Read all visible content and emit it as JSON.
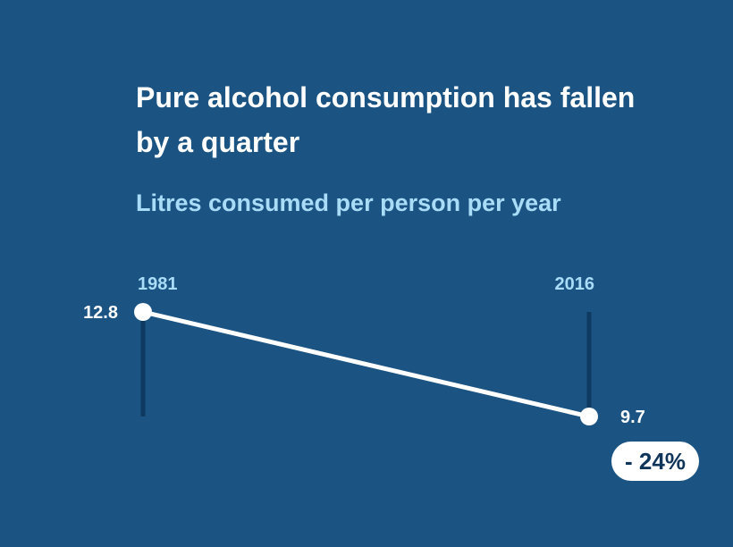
{
  "title": "Pure alcohol consumption has fallen by a quarter",
  "subtitle": "Litres consumed per person per year",
  "change_label": "- 24%",
  "colors": {
    "background": "#1b5483",
    "line": "#ffffff",
    "stem": "#0e3a62",
    "year_label": "#a9dcf7",
    "badge_text": "#10355a"
  },
  "chart_data": {
    "type": "line",
    "title": "Pure alcohol consumption has fallen by a quarter",
    "subtitle": "Litres consumed per person per year",
    "x": [
      "1981",
      "2016"
    ],
    "series": [
      {
        "values": [
          12.8,
          9.7
        ]
      }
    ],
    "data_labels": [
      "12.8",
      "9.7"
    ],
    "ylim": [
      9.7,
      12.8
    ],
    "grid": false,
    "annotation": "- 24%"
  }
}
